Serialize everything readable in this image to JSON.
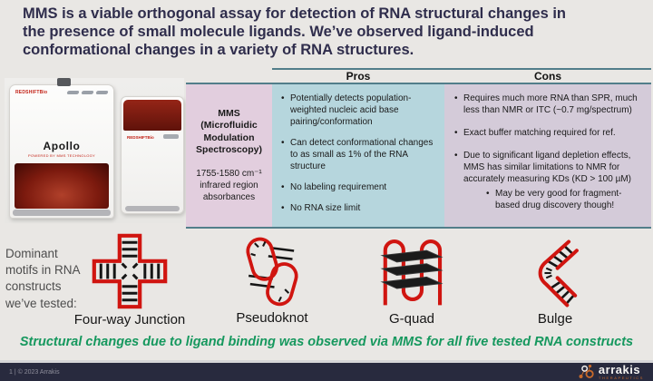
{
  "title": "MMS is a viable orthogonal assay for detection of RNA structural changes in\nthe presence of small molecule ligands. We’ve observed ligand-induced\nconformational changes in a variety of RNA structures.",
  "colors": {
    "title_navy": "#2f2d4c",
    "teal_border": "#527e8a",
    "pros_bg": "#b6d6dd",
    "cons_bg": "#d4cbd9",
    "mms_bg": "#e2cede",
    "conclusion_green": "#16985e",
    "motif_red": "#d01510",
    "footer_navy": "#282a3e",
    "logo_orange": "#c96a2a"
  },
  "device": {
    "brand": "REDSHIFTBio",
    "name": "Apollo",
    "tagline": "POWERED BY MMS TECHNOLOGY"
  },
  "table": {
    "headers": {
      "pros": "Pros",
      "cons": "Cons"
    },
    "mms": {
      "title": "MMS\n(Microfluidic\nModulation\nSpectroscopy)",
      "subtitle": "1755-1580 cm⁻¹\ninfrared region\nabsorbances"
    },
    "pros": {
      "items": [
        "Potentially detects population-weighted nucleic acid base pairing/conformation",
        "Can detect conformational changes to as small as 1% of the RNA structure",
        "No labeling requirement",
        "No RNA size limit"
      ]
    },
    "cons": {
      "items": [
        {
          "text": "Requires much more RNA than SPR, much less than NMR or ITC (~0.7 mg/spectrum)"
        },
        {
          "text": "Exact buffer matching required for ref."
        },
        {
          "text": "Due to significant ligand depletion effects, MMS has similar limitations to NMR for accurately measuring KDs (KD > 100 µM)",
          "sub": [
            "May be very good for fragment-based drug discovery though!"
          ]
        }
      ]
    }
  },
  "motifs": {
    "intro": "Dominant\nmotifs in RNA\nconstructs\nwe’ve tested:",
    "items": [
      {
        "label": "Four-way Junction"
      },
      {
        "label": "Pseudoknot"
      },
      {
        "label": "G-quad"
      },
      {
        "label": "Bulge"
      }
    ]
  },
  "conclusion": "Structural changes due to ligand binding was observed via MMS for all five tested RNA constructs",
  "footer": {
    "page_info": "1   |   © 2023 Arrakis",
    "logo": "arrakis",
    "logo_tagline": "THERAPEUTICS"
  }
}
